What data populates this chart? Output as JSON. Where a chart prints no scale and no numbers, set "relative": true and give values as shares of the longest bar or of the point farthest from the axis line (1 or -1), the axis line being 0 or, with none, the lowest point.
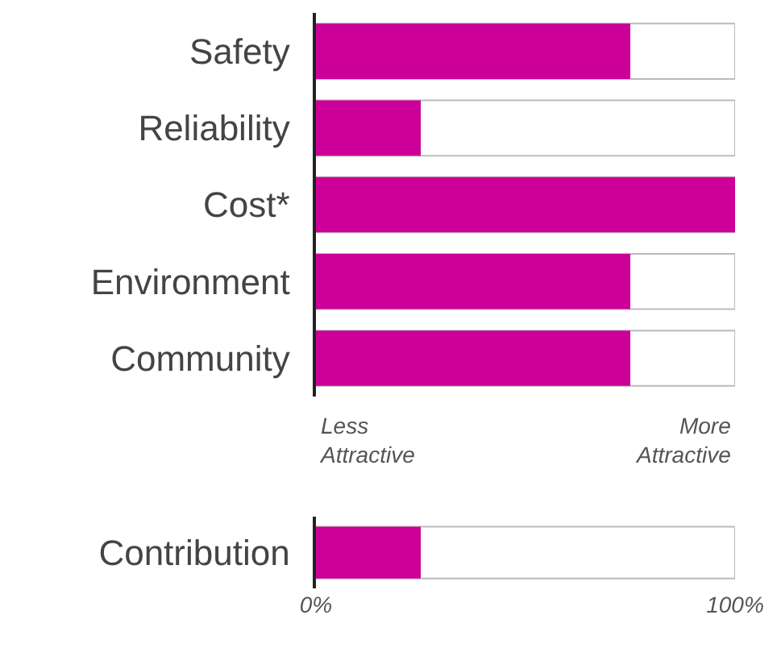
{
  "chart_data": [
    {
      "type": "bar",
      "orientation": "horizontal",
      "relative": true,
      "categories": [
        "Safety",
        "Reliability",
        "Cost*",
        "Environment",
        "Community"
      ],
      "values": [
        0.75,
        0.25,
        1,
        0.75,
        0.75
      ],
      "color": "#cc0099",
      "grid": false,
      "annotations": [
        "Less Attractive",
        "More Attractive"
      ]
    },
    {
      "type": "bar",
      "orientation": "horizontal",
      "categories": [
        "Contribution"
      ],
      "values": [
        25
      ],
      "color": "#cc0099",
      "xlim": [
        0,
        100
      ],
      "xticks": [
        {
          "value": 0,
          "label": "0%"
        },
        {
          "value": 100,
          "label": "100%"
        }
      ],
      "grid": false
    }
  ]
}
